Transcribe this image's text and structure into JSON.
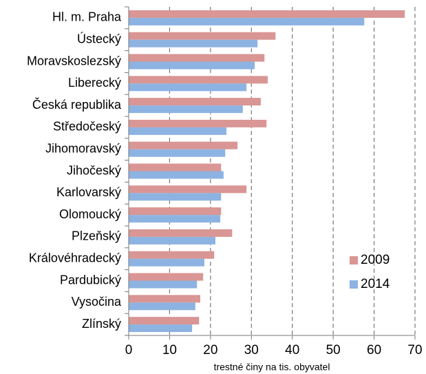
{
  "chart_data": {
    "type": "bar",
    "orientation": "horizontal",
    "x_label": "trestné činy na tis. obyvatel",
    "categories": [
      "Hl. m. Praha",
      "Ústecký",
      "Moravskoslezský",
      "Liberecký",
      "Česká republika",
      "Středočeský",
      "Jihomoravský",
      "Jihočeský",
      "Karlovarský",
      "Olomoucký",
      "Plzeňský",
      "Královéhradecký",
      "Pardubický",
      "Vysočina",
      "Zlínský"
    ],
    "series": [
      {
        "name": "2009",
        "color": "#d99694",
        "values": [
          67.5,
          35.9,
          33.2,
          34.0,
          32.3,
          33.7,
          26.6,
          22.6,
          28.8,
          22.6,
          25.3,
          20.9,
          18.2,
          17.5,
          17.2
        ]
      },
      {
        "name": "2014",
        "color": "#8db3e2",
        "values": [
          57.6,
          31.5,
          30.8,
          28.8,
          27.9,
          23.9,
          23.6,
          23.2,
          22.6,
          22.4,
          21.2,
          18.5,
          16.7,
          16.3,
          15.5
        ]
      }
    ],
    "xlim": [
      0,
      70
    ],
    "xticks": [
      0,
      10,
      20,
      30,
      40,
      50,
      60,
      70
    ],
    "grid": true,
    "legend": "lower right"
  }
}
